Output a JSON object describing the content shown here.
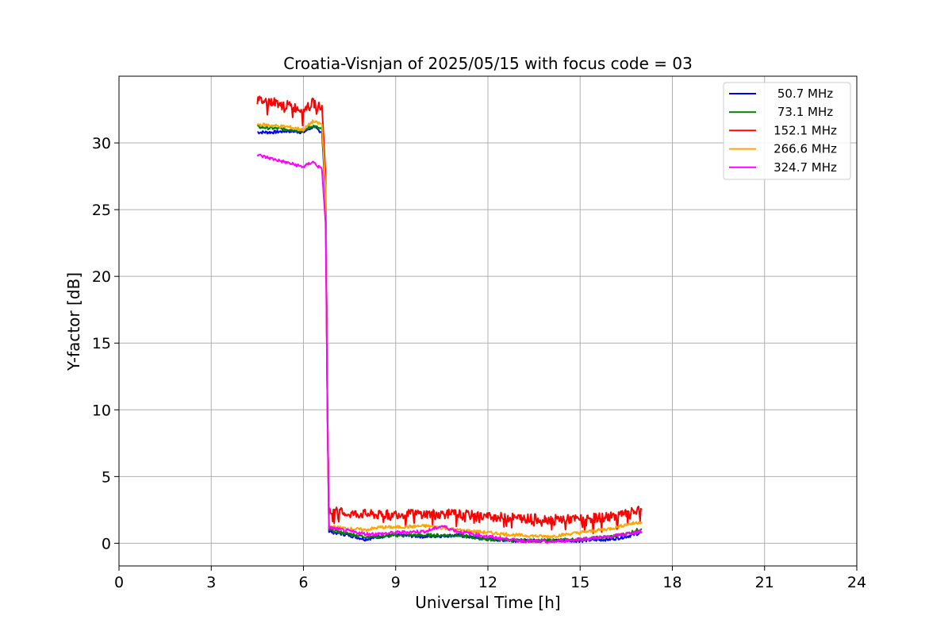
{
  "chart_data": {
    "type": "line",
    "title": "Croatia-Visnjan of 2025/05/15 with focus code = 03",
    "xlabel": "Universal Time [h]",
    "ylabel": "Y-factor [dB]",
    "xlim": [
      0,
      24
    ],
    "ylim": [
      -1.7,
      35
    ],
    "xticks": [
      0,
      3,
      6,
      9,
      12,
      15,
      18,
      21,
      24
    ],
    "xtick_labels": [
      "0",
      "3",
      "6",
      "9",
      "12",
      "15",
      "18",
      "21",
      "24"
    ],
    "yticks": [
      0,
      5,
      10,
      15,
      20,
      25,
      30
    ],
    "ytick_labels": [
      "0",
      "5",
      "10",
      "15",
      "20",
      "25",
      "30"
    ],
    "grid": true,
    "legend_position": "top-right",
    "series": [
      {
        "name": " 50.7 MHz",
        "color": "#0000ff",
        "x": [
          4.5,
          5.0,
          5.5,
          6.0,
          6.3,
          6.6,
          6.72,
          6.78,
          6.83,
          7.0,
          7.5,
          8.0,
          8.5,
          9.0,
          10.0,
          11.0,
          12.0,
          13.0,
          14.0,
          15.0,
          16.0,
          16.5,
          17.0
        ],
        "y": [
          30.8,
          30.8,
          30.9,
          30.8,
          31.2,
          30.8,
          26.0,
          10.0,
          0.9,
          0.8,
          0.6,
          0.3,
          0.5,
          0.6,
          0.5,
          0.6,
          0.3,
          0.2,
          0.2,
          0.2,
          0.3,
          0.5,
          0.8
        ]
      },
      {
        "name": " 73.1 MHz",
        "color": "#008000",
        "x": [
          4.5,
          5.0,
          5.5,
          6.0,
          6.3,
          6.6,
          6.72,
          6.78,
          6.83,
          7.0,
          7.5,
          8.0,
          8.5,
          9.0,
          10.0,
          11.0,
          12.0,
          13.0,
          14.0,
          15.0,
          16.0,
          16.5,
          17.0
        ],
        "y": [
          31.2,
          31.1,
          31.0,
          30.9,
          31.3,
          31.0,
          26.5,
          10.0,
          1.0,
          0.9,
          0.7,
          0.5,
          0.5,
          0.6,
          0.6,
          0.6,
          0.3,
          0.2,
          0.2,
          0.3,
          0.5,
          0.7,
          1.1
        ]
      },
      {
        "name": " 152.1 MHz",
        "color": "#ff0000",
        "x": [
          4.5,
          5.0,
          5.5,
          6.0,
          6.3,
          6.6,
          6.72,
          6.78,
          6.83,
          7.0,
          7.5,
          8.0,
          8.5,
          9.0,
          10.0,
          11.0,
          12.0,
          13.0,
          14.0,
          15.0,
          16.0,
          16.5,
          17.0
        ],
        "y": [
          33.2,
          33.1,
          32.8,
          32.5,
          33.0,
          32.8,
          27.5,
          10.0,
          2.3,
          2.4,
          2.2,
          2.2,
          2.1,
          2.2,
          2.2,
          2.2,
          2.0,
          1.9,
          1.8,
          1.8,
          2.0,
          2.2,
          2.5
        ]
      },
      {
        "name": " 266.6 MHz",
        "color": "#ffa500",
        "x": [
          4.5,
          5.0,
          5.5,
          6.0,
          6.3,
          6.6,
          6.72,
          6.78,
          6.83,
          7.0,
          7.5,
          8.0,
          8.5,
          9.0,
          10.0,
          11.0,
          12.0,
          13.0,
          14.0,
          15.0,
          16.0,
          16.5,
          17.0
        ],
        "y": [
          31.4,
          31.3,
          31.2,
          31.0,
          31.6,
          31.4,
          26.5,
          10.0,
          1.3,
          1.2,
          1.1,
          1.0,
          1.2,
          1.2,
          1.3,
          1.0,
          0.8,
          0.6,
          0.5,
          0.8,
          1.1,
          1.4,
          1.6
        ]
      },
      {
        "name": " 324.7 MHz",
        "color": "#ff00ff",
        "x": [
          4.5,
          5.0,
          5.5,
          6.0,
          6.3,
          6.6,
          6.72,
          6.78,
          6.83,
          7.0,
          7.5,
          8.0,
          8.5,
          9.0,
          10.0,
          10.5,
          11.0,
          12.0,
          13.0,
          14.0,
          15.0,
          16.0,
          16.5,
          17.0
        ],
        "y": [
          29.1,
          28.8,
          28.5,
          28.2,
          28.6,
          28.0,
          24.0,
          10.0,
          1.2,
          1.1,
          0.9,
          0.7,
          0.7,
          0.8,
          0.9,
          1.3,
          0.9,
          0.5,
          0.2,
          0.1,
          0.3,
          0.5,
          0.7,
          0.9
        ]
      }
    ]
  }
}
